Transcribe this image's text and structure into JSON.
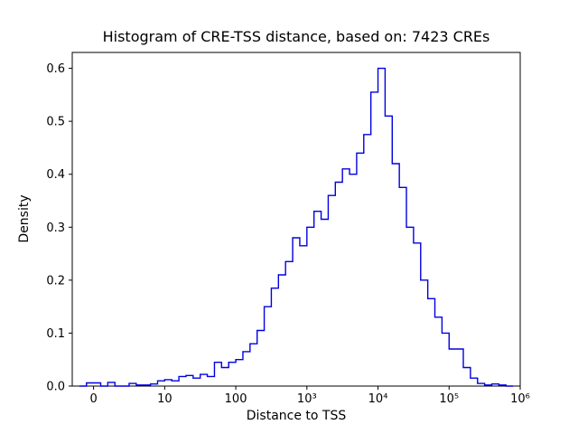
{
  "chart_data": {
    "type": "bar",
    "subtype": "histogram-step",
    "title": "Histogram of CRE-TSS distance, based on: 7423 CREs",
    "xlabel": "Distance to TSS",
    "ylabel": "Density",
    "x_scale": "symlog",
    "legend": "none",
    "grid": false,
    "line_color": "#0000e0",
    "axis_color": "#000000",
    "background_color": "#ffffff",
    "x_tick_labels": [
      "0",
      "10",
      "100",
      "10³",
      "10⁴",
      "10⁵",
      "10⁶"
    ],
    "x_tick_units": [
      0,
      1,
      2,
      3,
      4,
      5,
      6
    ],
    "y_tick_labels": [
      "0.0",
      "0.1",
      "0.2",
      "0.3",
      "0.4",
      "0.5",
      "0.6"
    ],
    "y_ticks": [
      0.0,
      0.1,
      0.2,
      0.3,
      0.4,
      0.5,
      0.6
    ],
    "ylim": [
      0,
      0.63
    ],
    "xlim_units": [
      -0.3,
      6.0
    ],
    "bin_width_units": 0.1,
    "bins": [
      [
        -0.2,
        0.0
      ],
      [
        -0.1,
        0.006
      ],
      [
        0.0,
        0.006
      ],
      [
        0.1,
        0.0
      ],
      [
        0.2,
        0.007
      ],
      [
        0.3,
        0.0
      ],
      [
        0.4,
        0.0
      ],
      [
        0.5,
        0.005
      ],
      [
        0.6,
        0.002
      ],
      [
        0.7,
        0.002
      ],
      [
        0.8,
        0.004
      ],
      [
        0.9,
        0.01
      ],
      [
        1.0,
        0.012
      ],
      [
        1.1,
        0.01
      ],
      [
        1.2,
        0.018
      ],
      [
        1.3,
        0.02
      ],
      [
        1.4,
        0.015
      ],
      [
        1.5,
        0.022
      ],
      [
        1.6,
        0.018
      ],
      [
        1.7,
        0.045
      ],
      [
        1.8,
        0.035
      ],
      [
        1.9,
        0.045
      ],
      [
        2.0,
        0.05
      ],
      [
        2.1,
        0.065
      ],
      [
        2.2,
        0.08
      ],
      [
        2.3,
        0.105
      ],
      [
        2.4,
        0.15
      ],
      [
        2.5,
        0.185
      ],
      [
        2.6,
        0.21
      ],
      [
        2.7,
        0.235
      ],
      [
        2.8,
        0.28
      ],
      [
        2.9,
        0.265
      ],
      [
        3.0,
        0.3
      ],
      [
        3.1,
        0.33
      ],
      [
        3.2,
        0.315
      ],
      [
        3.3,
        0.36
      ],
      [
        3.4,
        0.385
      ],
      [
        3.5,
        0.41
      ],
      [
        3.6,
        0.4
      ],
      [
        3.7,
        0.44
      ],
      [
        3.8,
        0.475
      ],
      [
        3.9,
        0.555
      ],
      [
        4.0,
        0.6
      ],
      [
        4.1,
        0.51
      ],
      [
        4.2,
        0.42
      ],
      [
        4.3,
        0.375
      ],
      [
        4.4,
        0.3
      ],
      [
        4.5,
        0.27
      ],
      [
        4.6,
        0.2
      ],
      [
        4.7,
        0.165
      ],
      [
        4.8,
        0.13
      ],
      [
        4.9,
        0.1
      ],
      [
        5.0,
        0.07
      ],
      [
        5.1,
        0.07
      ],
      [
        5.2,
        0.035
      ],
      [
        5.3,
        0.015
      ],
      [
        5.4,
        0.005
      ],
      [
        5.5,
        0.002
      ],
      [
        5.6,
        0.004
      ],
      [
        5.7,
        0.002
      ],
      [
        5.8,
        0.0
      ]
    ]
  }
}
